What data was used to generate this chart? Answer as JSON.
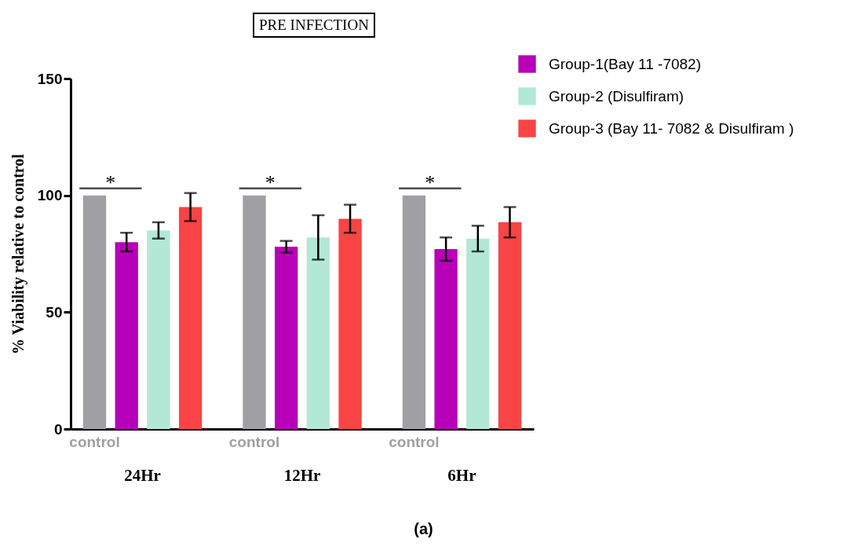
{
  "chart_data": {
    "type": "bar",
    "title": "PRE INFECTION",
    "ylabel": "% Viability relative to control",
    "categories": [
      "24Hr",
      "12Hr",
      "6Hr"
    ],
    "series": [
      {
        "name": "control",
        "color": "#a09fa4",
        "values": [
          100,
          100,
          100
        ]
      },
      {
        "name": "Group-1(Bay 11 -7082)",
        "color": "#b800b8",
        "values": [
          80,
          78,
          77
        ],
        "errors": [
          4,
          2.5,
          5
        ]
      },
      {
        "name": "Group-2 (Disulfiram)",
        "color": "#b3e8d6",
        "values": [
          85,
          82,
          81.5
        ],
        "errors": [
          3.5,
          9.5,
          5.5
        ]
      },
      {
        "name": "Group-3 (Bay 11- 7082 & Disulfiram )",
        "color": "#f84444",
        "values": [
          95,
          90,
          88.5
        ],
        "errors": [
          6,
          6,
          6.5
        ]
      }
    ],
    "ylim": [
      0,
      150
    ],
    "yticks": [
      0,
      50,
      100,
      150
    ],
    "grid": false,
    "legend": "top right",
    "annotations": [
      "*",
      "*",
      "*",
      "(a)"
    ]
  }
}
